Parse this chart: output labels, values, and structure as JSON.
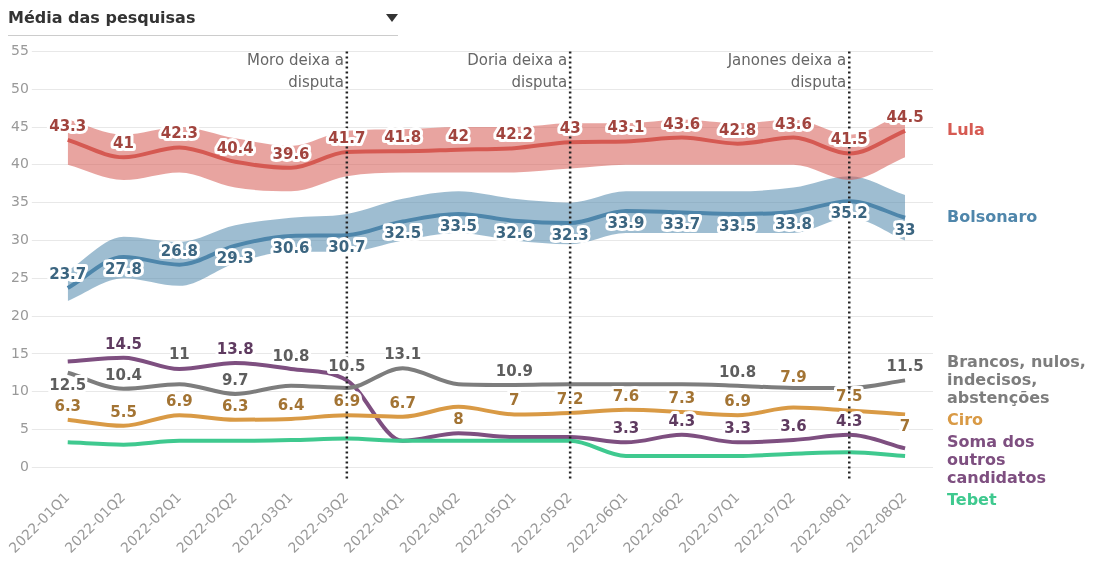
{
  "chart_data": {
    "type": "line",
    "title": "Média das pesquisas",
    "categories": [
      "2022-01Q1",
      "2022-01Q2",
      "2022-02Q1",
      "2022-02Q2",
      "2022-03Q1",
      "2022-03Q2",
      "2022-04Q1",
      "2022-04Q2",
      "2022-05Q1",
      "2022-05Q2",
      "2022-06Q1",
      "2022-06Q2",
      "2022-07Q1",
      "2022-07Q2",
      "2022-08Q1",
      "2022-08Q2"
    ],
    "series": [
      {
        "name": "Lula",
        "color": "#d65a52",
        "values": [
          43.3,
          41,
          42.3,
          40.4,
          39.6,
          41.7,
          41.8,
          42,
          42.2,
          43,
          43.1,
          43.6,
          42.8,
          43.6,
          41.5,
          44.5
        ],
        "lower": [
          40,
          38,
          39,
          37,
          36.5,
          38.5,
          39,
          39,
          39,
          39.5,
          40,
          40,
          40,
          40,
          38,
          41
        ],
        "upper": [
          46,
          44,
          45,
          43.5,
          42.5,
          44.5,
          44.7,
          45,
          45,
          45.5,
          45.5,
          46,
          45.5,
          46,
          44,
          47
        ],
        "value_labels": [
          "43.3",
          "41",
          "42.3",
          "40.4",
          "39.6",
          "41.7",
          "41.8",
          "42",
          "42.2",
          "43",
          "43.1",
          "43.6",
          "42.8",
          "43.6",
          "41.5",
          "44.5"
        ]
      },
      {
        "name": "Bolsonaro",
        "color": "#4f86ab",
        "values": [
          23.7,
          27.8,
          26.8,
          29.3,
          30.6,
          30.7,
          32.5,
          33.5,
          32.6,
          32.3,
          33.9,
          33.7,
          33.5,
          33.8,
          35.2,
          33
        ],
        "lower": [
          22,
          25,
          24,
          27,
          28.5,
          28.5,
          30,
          31,
          30,
          29.5,
          31,
          31,
          31,
          31,
          33,
          30
        ],
        "upper": [
          26,
          30.5,
          29.8,
          32,
          33,
          33.5,
          35.5,
          36.5,
          35.5,
          35,
          36.5,
          36.5,
          36.5,
          37,
          38.5,
          36
        ],
        "value_labels": [
          "23.7",
          "27.8",
          "26.8",
          "29.3",
          "30.6",
          "30.7",
          "32.5",
          "33.5",
          "32.6",
          "32.3",
          "33.9",
          "33.7",
          "33.5",
          "33.8",
          "35.2",
          "33"
        ]
      },
      {
        "name": "Brancos, nulos, indecisos, abstenções",
        "color": "#7d7d7d",
        "values": [
          12.5,
          10.4,
          11,
          9.7,
          10.8,
          10.5,
          13.1,
          11,
          10.9,
          11,
          11,
          11,
          10.8,
          10.5,
          10.5,
          11.5
        ],
        "value_labels": [
          "12.5",
          "10.4",
          "11",
          "9.7",
          "10.8",
          "10.5",
          "13.1",
          null,
          "10.9",
          null,
          null,
          null,
          "10.8",
          null,
          null,
          "11.5"
        ]
      },
      {
        "name": "Ciro",
        "color": "#d99a45",
        "values": [
          6.3,
          5.5,
          6.9,
          6.3,
          6.4,
          6.9,
          6.7,
          8,
          7,
          7.2,
          7.6,
          7.3,
          6.9,
          7.9,
          7.5,
          7
        ],
        "value_labels": [
          "6.3",
          "5.5",
          "6.9",
          "6.3",
          "6.4",
          "6.9",
          "6.7",
          "8",
          "7",
          "7.2",
          "7.6",
          "7.3",
          "6.9",
          "7.9",
          "7.5",
          "7"
        ]
      },
      {
        "name": "Tebet",
        "color": "#3fc98f",
        "values": [
          3.3,
          3,
          3.5,
          3.5,
          3.6,
          3.8,
          3.5,
          3.5,
          3.5,
          3.5,
          1.5,
          1.5,
          1.5,
          1.8,
          2,
          1.5
        ]
      },
      {
        "name": "Soma dos outros candidatos",
        "color": "#7e4f80",
        "values": [
          14,
          14.5,
          13,
          13.8,
          13,
          11.5,
          3.5,
          4.5,
          4,
          4,
          3.3,
          4.3,
          3.3,
          3.6,
          4.3,
          2.5
        ],
        "value_labels": [
          null,
          "14.5",
          null,
          "13.8",
          null,
          null,
          null,
          null,
          null,
          null,
          "3.3",
          "4.3",
          "3.3",
          "3.6",
          "4.3",
          null
        ]
      }
    ],
    "ylim": [
      -1.5,
      55
    ],
    "yticks": [
      0,
      5,
      10,
      15,
      20,
      25,
      30,
      35,
      40,
      45,
      50,
      55
    ],
    "grid": "y",
    "legend": false,
    "ref_lines": [
      {
        "axis": "x",
        "value": "2022-03Q2",
        "label": "Moro deixa a disputa",
        "color": "#222222",
        "line_style": "dotted"
      },
      {
        "axis": "x",
        "value": "2022-05Q2",
        "label": "Doria deixa a disputa",
        "color": "#222222",
        "line_style": "dotted"
      },
      {
        "axis": "x",
        "value": "2022-08Q1",
        "label": "Janones deixa a disputa",
        "color": "#222222",
        "line_style": "dotted"
      }
    ]
  }
}
